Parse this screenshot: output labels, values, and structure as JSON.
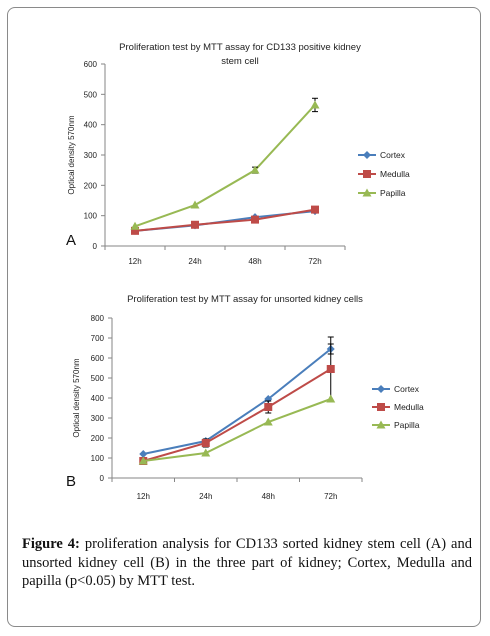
{
  "chart_data": [
    {
      "type": "line",
      "panel_label": "A",
      "title": "Proliferation test by MTT assay for CD133 positive kidney stem cell",
      "title_lines": [
        "Proliferation test by MTT assay for CD133 positive kidney",
        "stem cell"
      ],
      "xlabel": "",
      "ylabel": "Optical density 570nm",
      "categories": [
        "12h",
        "24h",
        "48h",
        "72h"
      ],
      "ylim": [
        0,
        600
      ],
      "yticks": [
        0,
        100,
        200,
        300,
        400,
        500,
        600
      ],
      "grid": false,
      "legend": "right",
      "series": [
        {
          "name": "Cortex",
          "values": [
            50,
            68,
            95,
            115
          ],
          "color": "#4a7ebb",
          "marker": "diamond"
        },
        {
          "name": "Medulla",
          "values": [
            50,
            70,
            87,
            120
          ],
          "color": "#be4b48",
          "marker": "square"
        },
        {
          "name": "Papilla",
          "values": [
            65,
            135,
            250,
            465
          ],
          "color": "#98b954",
          "marker": "triangle",
          "error": [
            0,
            0,
            10,
            22
          ]
        }
      ]
    },
    {
      "type": "line",
      "panel_label": "B",
      "title": "Proliferation test by MTT assay for unsorted kidney cells",
      "title_lines": [
        "Proliferation test by MTT assay for unsorted kidney cells"
      ],
      "xlabel": "",
      "ylabel": "Optical density 570nm",
      "categories": [
        "12h",
        "24h",
        "48h",
        "72h"
      ],
      "ylim": [
        0,
        800
      ],
      "yticks": [
        0,
        100,
        200,
        300,
        400,
        500,
        600,
        700,
        800
      ],
      "grid": false,
      "legend": "right",
      "series": [
        {
          "name": "Cortex",
          "values": [
            120,
            185,
            395,
            645
          ],
          "color": "#4a7ebb",
          "marker": "diamond",
          "error": [
            0,
            0,
            0,
            25
          ]
        },
        {
          "name": "Medulla",
          "values": [
            85,
            175,
            355,
            545
          ],
          "color": "#be4b48",
          "marker": "square",
          "error": [
            15,
            20,
            30,
            160
          ]
        },
        {
          "name": "Papilla",
          "values": [
            85,
            125,
            280,
            395
          ],
          "color": "#98b954",
          "marker": "triangle"
        }
      ]
    }
  ],
  "caption": {
    "label": "Figure 4:",
    "text": " proliferation analysis for CD133 sorted kidney stem cell (A) and unsorted kidney cell (B) in the three part of kidney; Cortex, Medulla and papilla (p<0.05) by MTT test."
  }
}
